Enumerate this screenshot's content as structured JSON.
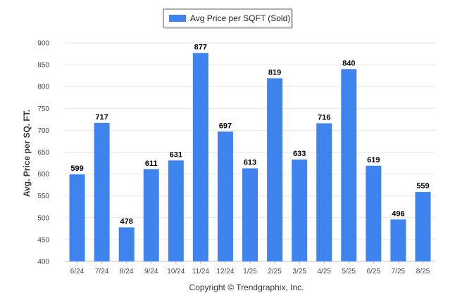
{
  "chart_data": {
    "type": "bar",
    "categories": [
      "6/24",
      "7/24",
      "8/24",
      "9/24",
      "10/24",
      "11/24",
      "12/24",
      "1/25",
      "2/25",
      "3/25",
      "4/25",
      "5/25",
      "6/25",
      "7/25",
      "8/25"
    ],
    "series": [
      {
        "name": "Avg Price per SQFT (Sold)",
        "values": [
          599,
          717,
          478,
          611,
          631,
          877,
          697,
          613,
          819,
          633,
          716,
          840,
          619,
          496,
          559
        ],
        "color": "#3f84ee"
      }
    ],
    "ylabel": "Avg. Price per SQ. FT.",
    "ylim": [
      400,
      900
    ],
    "yticks": [
      400,
      450,
      500,
      550,
      600,
      650,
      700,
      750,
      800,
      850,
      900
    ],
    "grid": true,
    "legend_placement": "top-center",
    "data_labels": true
  },
  "footer": {
    "credit": "Copyright © Trendgraphix, Inc."
  }
}
